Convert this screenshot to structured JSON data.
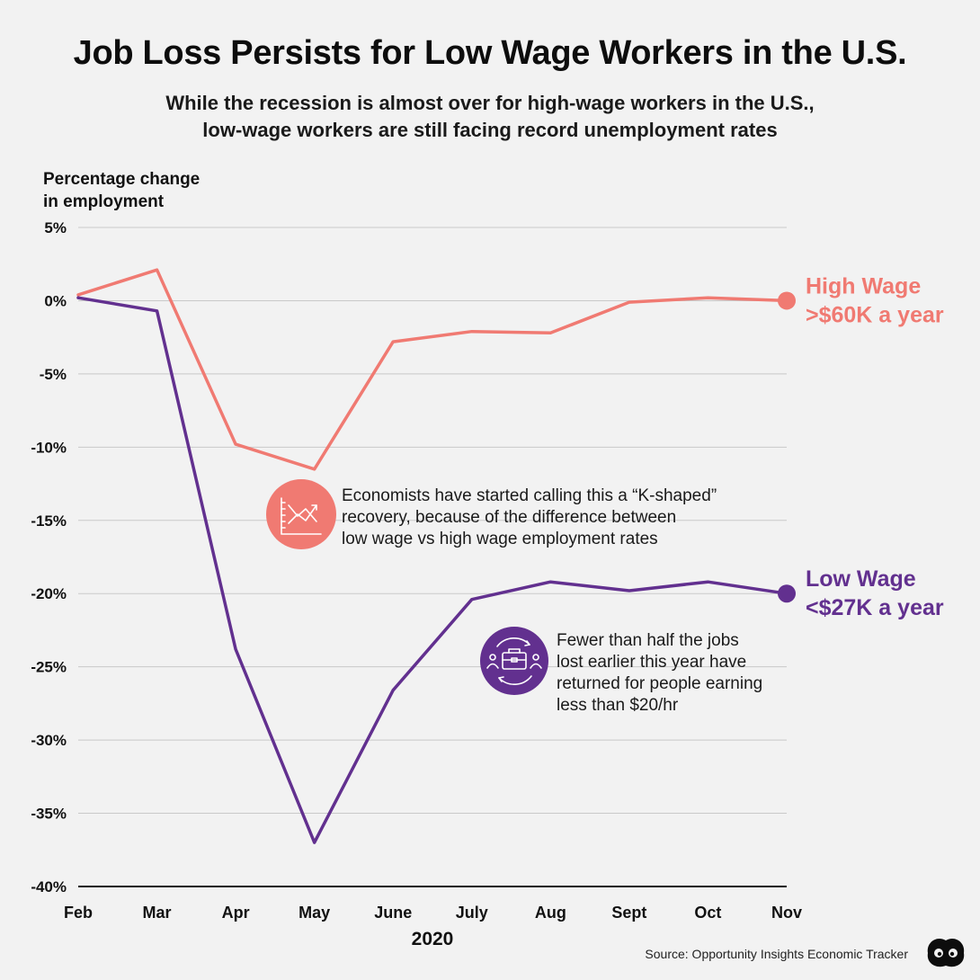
{
  "title": "Job Loss Persists for Low Wage Workers in the U.S.",
  "subtitle": [
    "While the recession is almost over for high-wage workers in the U.S.,",
    "low-wage workers are still facing record unemployment rates"
  ],
  "source": "Source: Opportunity Insights Economic Tracker",
  "icons": {
    "k_shape": "line-chart-icon",
    "jobs": "briefcase-people-icon",
    "logo": "visual-capitalist-logo-icon"
  },
  "colors": {
    "high_wage": "#f07a72",
    "low_wage": "#62308f",
    "grid": "#c9c9c9",
    "background": "#f2f2f2"
  },
  "chart_data": {
    "type": "line",
    "ylabel_lines": [
      "Percentage change",
      "in employment"
    ],
    "xlabel": "2020",
    "categories": [
      "Feb",
      "Mar",
      "Apr",
      "May",
      "June",
      "July",
      "Aug",
      "Sept",
      "Oct",
      "Nov"
    ],
    "ylim": [
      -40,
      5
    ],
    "yticks": [
      5,
      0,
      -5,
      -10,
      -15,
      -20,
      -25,
      -30,
      -35,
      -40
    ],
    "ytick_labels": [
      "5%",
      "0%",
      "-5%",
      "-10%",
      "-15%",
      "-20%",
      "-25%",
      "-30%",
      "-35%",
      "-40%"
    ],
    "grid": true,
    "series": [
      {
        "key": "high",
        "label_lines": [
          "High Wage",
          ">$60K a year"
        ],
        "values": [
          0.4,
          2.1,
          -9.8,
          -11.5,
          -2.8,
          -2.1,
          -2.2,
          -0.1,
          0.2,
          0.0
        ]
      },
      {
        "key": "low",
        "label_lines": [
          "Low Wage",
          "<$27K a year"
        ],
        "values": [
          0.2,
          -0.7,
          -23.8,
          -37.0,
          -26.6,
          -20.4,
          -19.2,
          -19.8,
          -19.2,
          -20.0
        ]
      }
    ],
    "annotations": [
      {
        "key": "k_shape",
        "lines": [
          "Economists have started calling this a “K-shaped”",
          "recovery, because of the difference between",
          "low wage vs high wage employment rates"
        ]
      },
      {
        "key": "jobs",
        "lines": [
          "Fewer than half the jobs",
          "lost earlier this year have",
          "returned for people earning",
          "less than $20/hr"
        ]
      }
    ]
  }
}
